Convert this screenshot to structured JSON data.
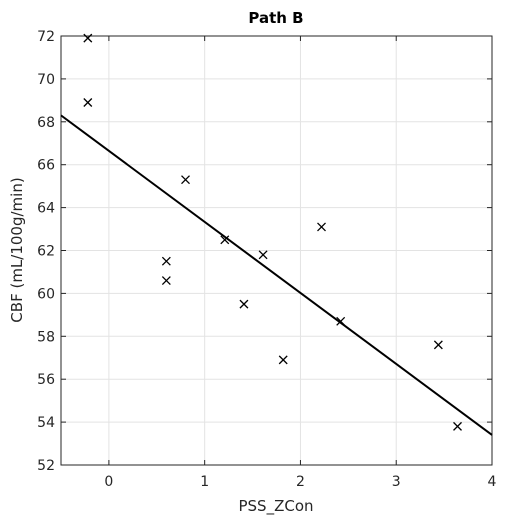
{
  "chart_data": {
    "type": "scatter",
    "title": "Path B",
    "xlabel": "PSS_ZCon",
    "ylabel": "CBF (mL/100g/min)",
    "xlim": [
      -0.5,
      4
    ],
    "ylim": [
      52,
      72
    ],
    "xticks": [
      0,
      1,
      2,
      3,
      4
    ],
    "yticks": [
      52,
      54,
      56,
      58,
      60,
      62,
      64,
      66,
      68,
      70,
      72
    ],
    "grid": true,
    "colors": {
      "marker": "#000000",
      "fit_line": "#000000",
      "grid": "#e3e3e3",
      "axis": "#262626"
    },
    "series": [
      {
        "marker": "x",
        "x": [
          -0.22,
          -0.22,
          0.6,
          0.6,
          0.8,
          1.21,
          1.41,
          1.61,
          1.82,
          2.22,
          2.42,
          3.44,
          3.64
        ],
        "y": [
          71.9,
          68.9,
          61.5,
          60.6,
          65.3,
          62.5,
          59.5,
          61.8,
          56.9,
          63.1,
          58.7,
          57.6,
          53.8
        ]
      }
    ],
    "fit_line": {
      "x": [
        -0.5,
        4
      ],
      "y": [
        68.3,
        53.4
      ]
    }
  }
}
